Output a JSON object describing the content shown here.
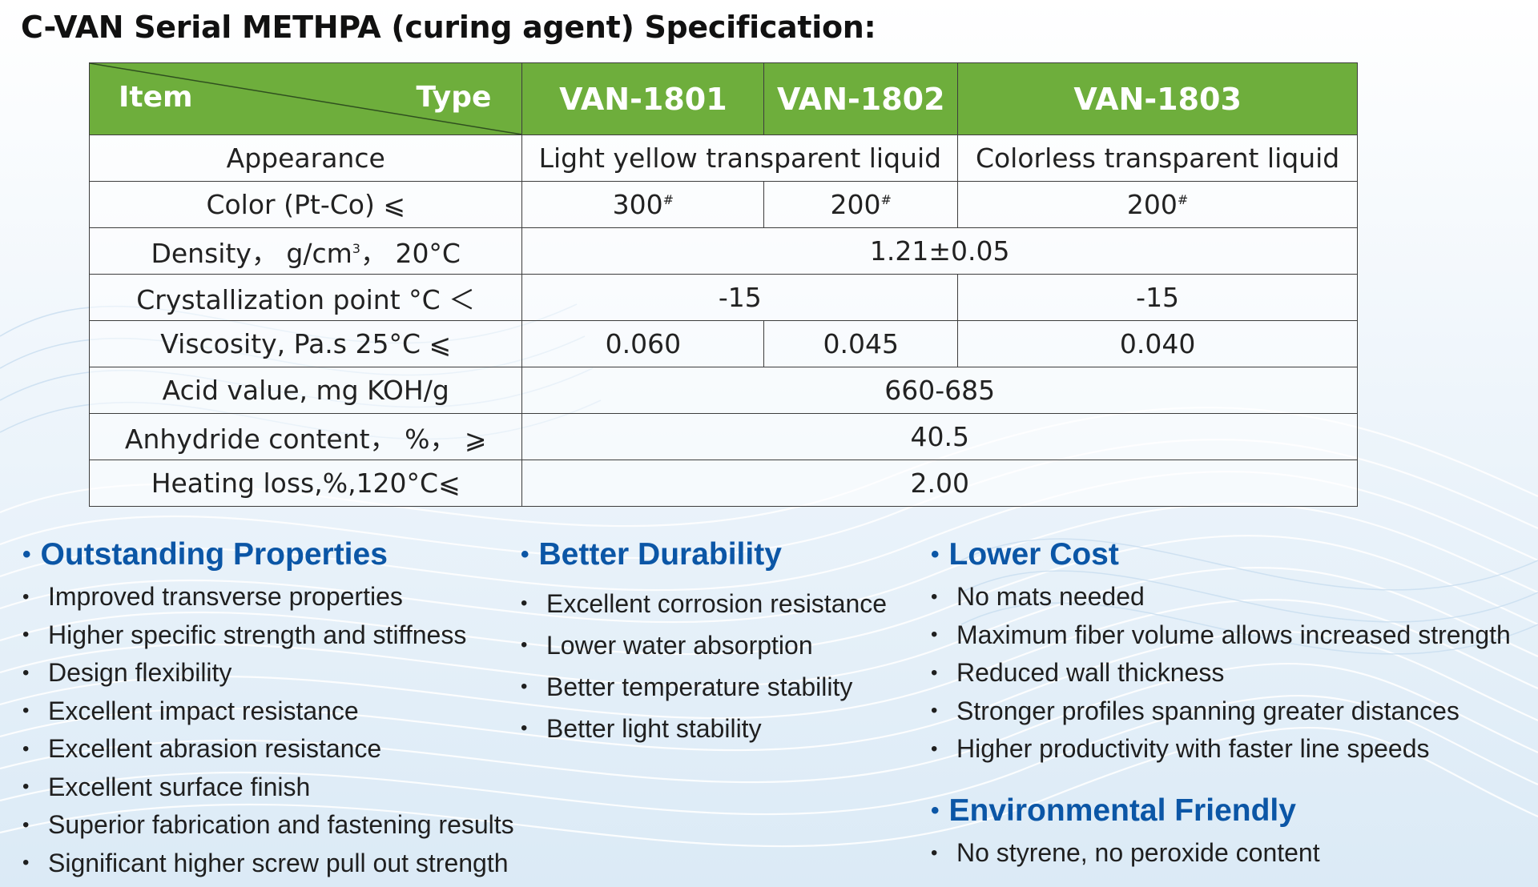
{
  "title": "C-VAN Serial METHPA (curing agent) Specification:",
  "colors": {
    "header_green": "#6eae3c",
    "heading_blue": "#0b56a6"
  },
  "table": {
    "header": {
      "item_label": "Item",
      "type_label": "Type",
      "types": [
        "VAN-1801",
        "VAN-1802",
        "VAN-1803"
      ]
    },
    "rows": {
      "appearance": {
        "label": "Appearance",
        "v12": "Light yellow transparent liquid",
        "v3": "Colorless transparent liquid"
      },
      "color": {
        "label": "Color (Pt-Co) ⩽",
        "v1": "300",
        "v2": "200",
        "v3": "200",
        "mark": "#"
      },
      "density": {
        "label": "Density， g/cm",
        "label_sup": "3",
        "label_tail": "， 20°C",
        "value": "1.21±0.05"
      },
      "crystallization": {
        "label": "Crystallization point °C ＜",
        "v12": "-15",
        "v3": "-15"
      },
      "viscosity": {
        "label": "Viscosity, Pa.s 25°C ⩽",
        "v1": "0.060",
        "v2": "0.045",
        "v3": "0.040"
      },
      "acid": {
        "label": "Acid value, mg KOH/g",
        "value": "660-685"
      },
      "anhydride": {
        "label": "Anhydride content， %， ⩾",
        "value": "40.5"
      },
      "heating": {
        "label": "Heating loss,%,120°C⩽",
        "value": "2.00"
      }
    }
  },
  "bullet_char": "•",
  "sections": {
    "outstanding": {
      "heading": "Outstanding Properties",
      "items": [
        "Improved transverse properties",
        "Higher specific strength and stiffness",
        "Design flexibility",
        "Excellent impact resistance",
        "Excellent abrasion resistance",
        "Excellent surface finish",
        "Superior fabrication and fastening results",
        "Significant higher screw pull out strength"
      ]
    },
    "durability": {
      "heading": "Better Durability",
      "items": [
        "Excellent corrosion resistance",
        "Lower water absorption",
        "Better temperature stability",
        "Better light stability"
      ]
    },
    "cost": {
      "heading": "Lower Cost",
      "items": [
        "No mats needed",
        "Maximum fiber volume allows increased strength",
        "Reduced wall thickness",
        "Stronger profiles spanning greater distances",
        "Higher productivity with faster line speeds"
      ]
    },
    "environment": {
      "heading": "Environmental Friendly",
      "items": [
        "No styrene, no peroxide content"
      ]
    }
  }
}
